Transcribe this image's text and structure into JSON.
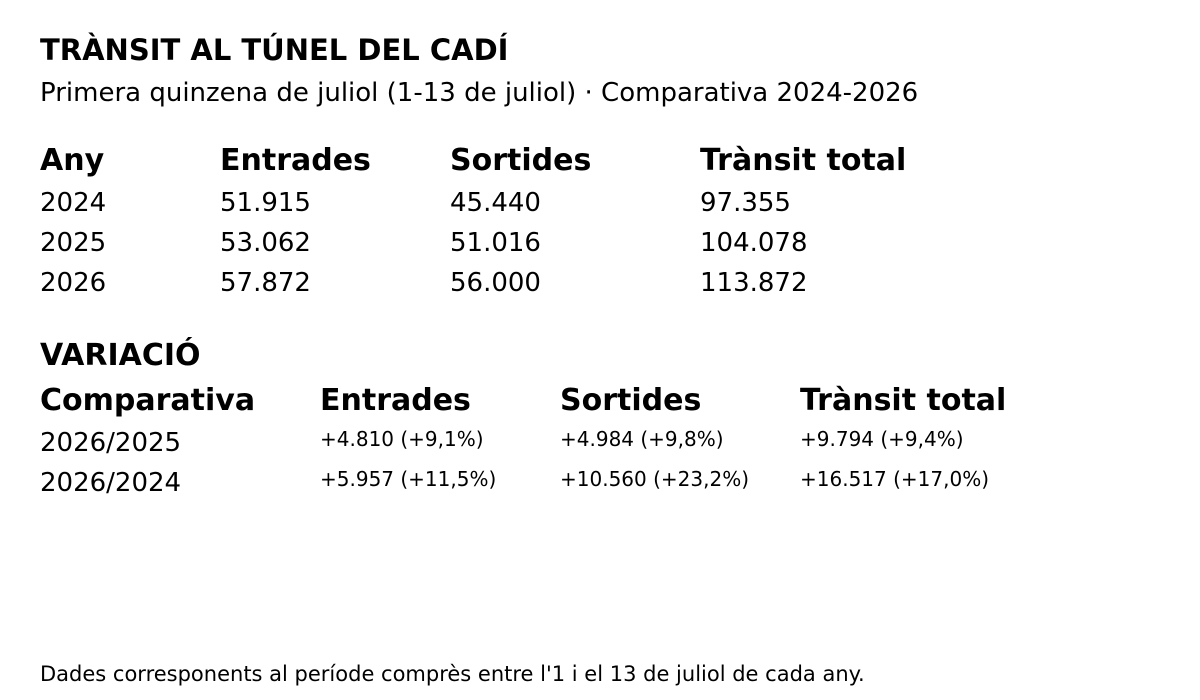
{
  "header": {
    "title": "TRÀNSIT AL TÚNEL DEL CADÍ",
    "subtitle": "Primera quinzena de juliol (1-13 de juliol) · Comparativa 2024-2026"
  },
  "table": {
    "columns": [
      "Any",
      "Entrades",
      "Sortides",
      "Trànsit total"
    ],
    "rows": [
      [
        "2024",
        "51.915",
        "45.440",
        "97.355"
      ],
      [
        "2025",
        "53.062",
        "51.016",
        "104.078"
      ],
      [
        "2026",
        "57.872",
        "56.000",
        "113.872"
      ]
    ]
  },
  "variation": {
    "title": "VARIACIÓ",
    "columns": [
      "Comparativa",
      "Entrades",
      "Sortides",
      "Trànsit total"
    ],
    "rows": [
      [
        "2026/2025",
        "+4.810 (+9,1%)",
        "+4.984 (+9,8%)",
        "+9.794 (+9,4%)"
      ],
      [
        "2026/2024",
        "+5.957 (+11,5%)",
        "+10.560 (+23,2%)",
        "+16.517 (+17,0%)"
      ]
    ]
  },
  "footnote": "Dades corresponents al període comprès entre l'1 i el 13 de juliol de cada any."
}
